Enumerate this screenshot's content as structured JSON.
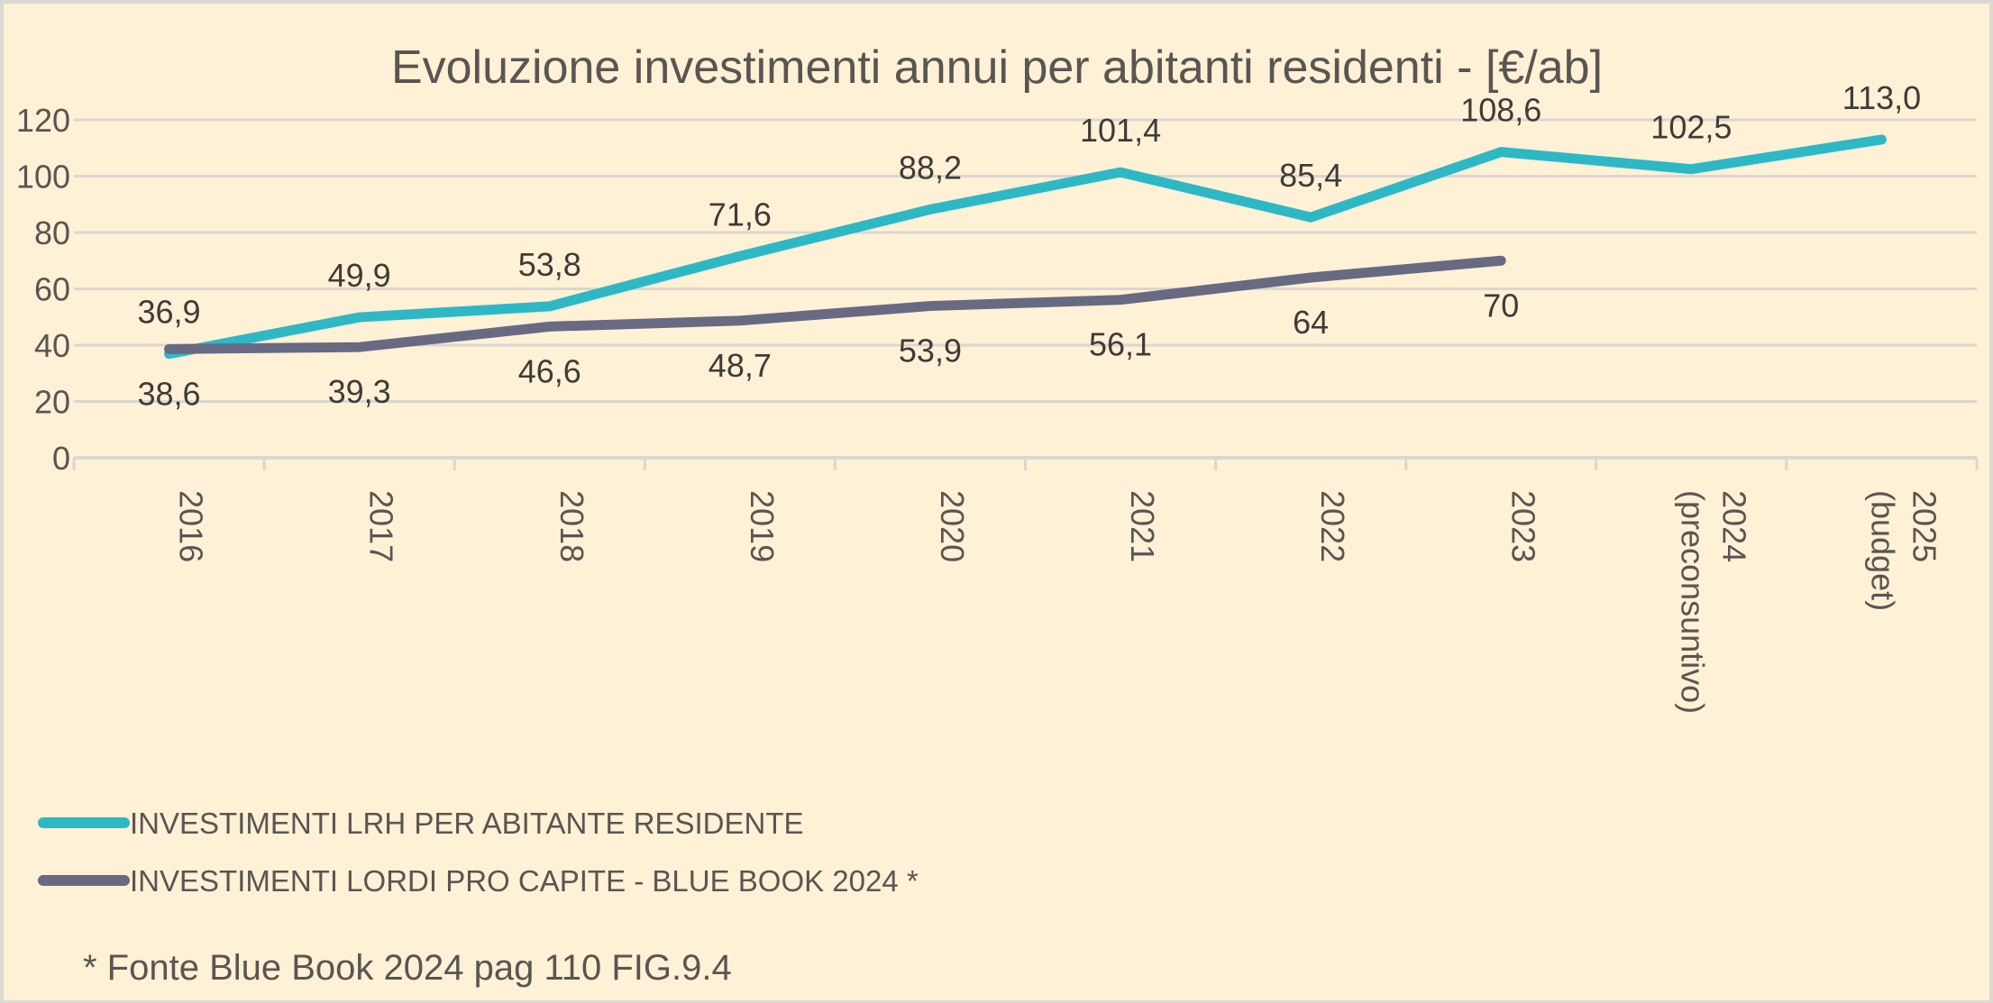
{
  "chart_data": {
    "type": "line",
    "title": "Evoluzione investimenti annui per abitanti residenti - [€/ab]",
    "xlabel": "",
    "ylabel": "",
    "ylim": [
      0,
      120
    ],
    "yticks": [
      0,
      20,
      40,
      60,
      80,
      100,
      120
    ],
    "grid": true,
    "legend_position": "bottom-left",
    "categories": [
      [
        "2016"
      ],
      [
        "2017"
      ],
      [
        "2018"
      ],
      [
        "2019"
      ],
      [
        "2020"
      ],
      [
        "2021"
      ],
      [
        "2022"
      ],
      [
        "2023"
      ],
      [
        "2024",
        "(preconsuntivo)"
      ],
      [
        "2025",
        "(budget)"
      ]
    ],
    "series": [
      {
        "name": "INVESTIMENTI LRH PER ABITANTE RESIDENTE",
        "color": "#2eb8c5",
        "values": [
          36.9,
          49.9,
          53.8,
          71.6,
          88.2,
          101.4,
          85.4,
          108.6,
          102.5,
          113.0
        ],
        "labels": [
          "36,9",
          "49,9",
          "53,8",
          "71,6",
          "88,2",
          "101,4",
          "85,4",
          "108,6",
          "102,5",
          "113,0"
        ],
        "label_position": "above"
      },
      {
        "name": "INVESTIMENTI LORDI PRO CAPITE - BLUE BOOK 2024 *",
        "color": "#676a82",
        "values": [
          38.6,
          39.3,
          46.6,
          48.7,
          53.9,
          56.1,
          64,
          70,
          null,
          null
        ],
        "labels": [
          "38,6",
          "39,3",
          "46,6",
          "48,7",
          "53,9",
          "56,1",
          "64",
          "70",
          null,
          null
        ],
        "label_position": "below"
      }
    ],
    "footnote": "* Fonte Blue Book 2024 pag 110 FIG.9.4"
  },
  "colors": {
    "background": "#fef1d6",
    "grid": "#dad7d0",
    "text": "#595552"
  }
}
